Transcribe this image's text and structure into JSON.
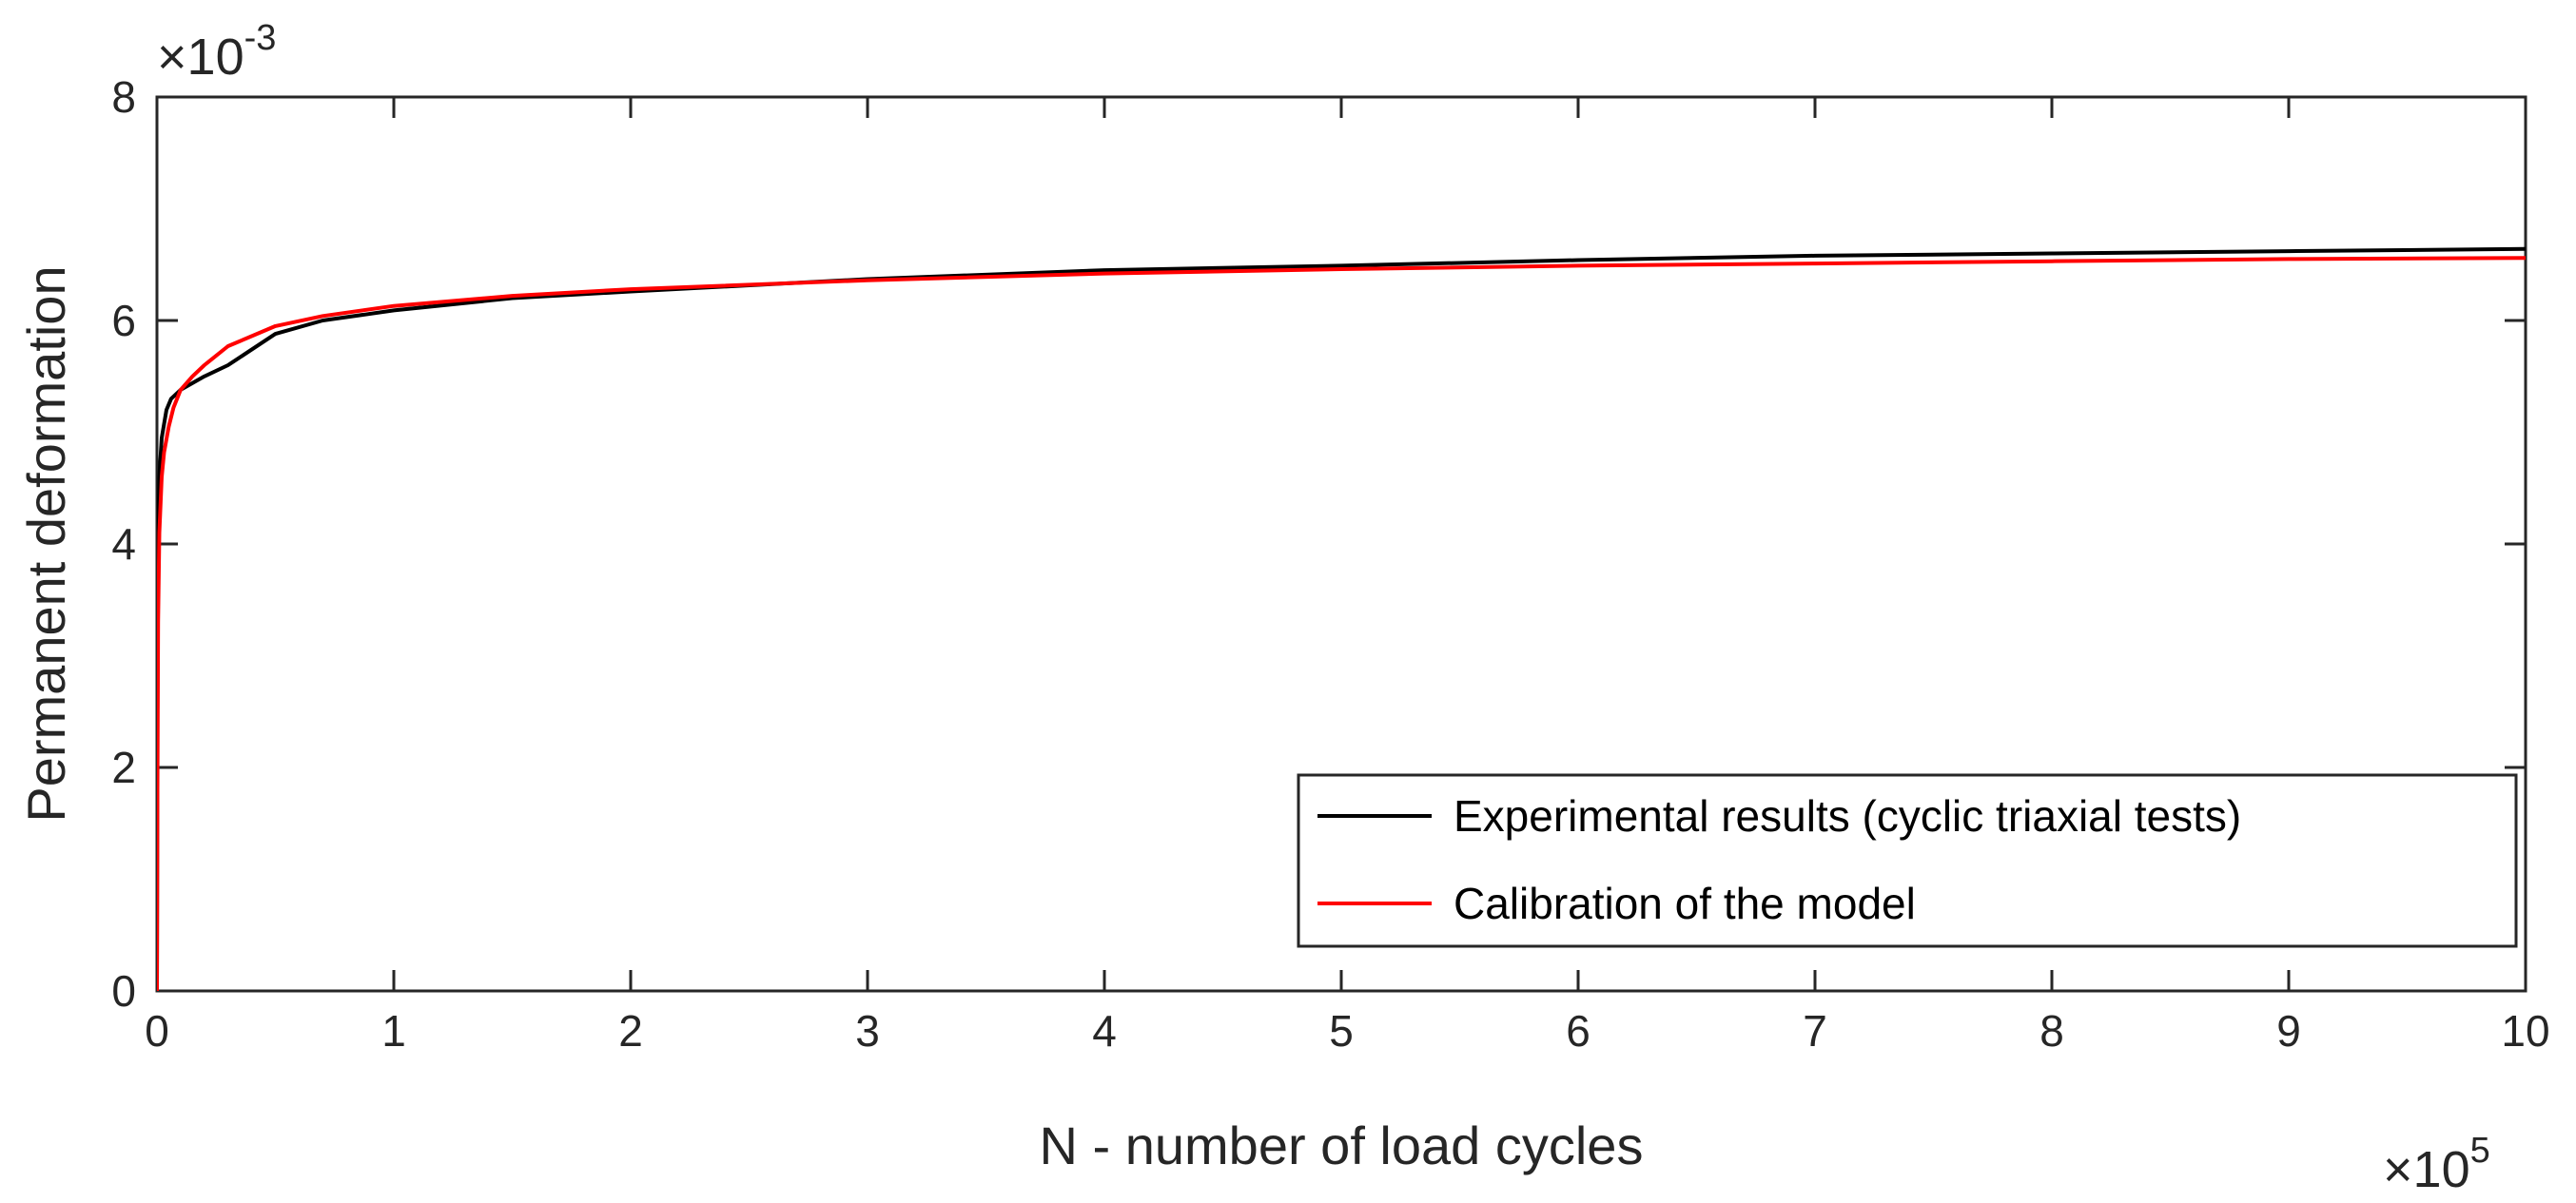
{
  "chart_data": {
    "type": "line",
    "title": "",
    "xlabel": "N - number of load cycles",
    "ylabel": "Permanent deformation",
    "xlim": [
      0,
      10
    ],
    "ylim": [
      0,
      8
    ],
    "x_multiplier": {
      "base": "×10",
      "exponent": "5"
    },
    "y_multiplier": {
      "base": "×10",
      "exponent": "-3"
    },
    "x_ticks": [
      "0",
      "1",
      "2",
      "3",
      "4",
      "5",
      "6",
      "7",
      "8",
      "9",
      "10"
    ],
    "y_ticks": [
      "0",
      "2",
      "4",
      "6",
      "8"
    ],
    "grid": false,
    "legend_position": "bottom-right",
    "series": [
      {
        "name": "Experimental results (cyclic triaxial tests)",
        "color": "#000000",
        "x": [
          0,
          0.002,
          0.005,
          0.01,
          0.02,
          0.04,
          0.06,
          0.1,
          0.2,
          0.3,
          0.5,
          0.7,
          1,
          1.5,
          2,
          3,
          4,
          5,
          6,
          7,
          8,
          9,
          10
        ],
        "y": [
          0,
          2.5,
          4.0,
          4.6,
          4.95,
          5.2,
          5.3,
          5.38,
          5.5,
          5.6,
          5.88,
          6.0,
          6.09,
          6.2,
          6.26,
          6.37,
          6.45,
          6.49,
          6.54,
          6.58,
          6.6,
          6.62,
          6.64
        ]
      },
      {
        "name": "Calibration of the model",
        "color": "#ff0000",
        "x": [
          0,
          0.002,
          0.005,
          0.01,
          0.02,
          0.03,
          0.05,
          0.07,
          0.1,
          0.15,
          0.2,
          0.3,
          0.5,
          0.7,
          1,
          1.5,
          2,
          3,
          4,
          5,
          6,
          7,
          8,
          9,
          10
        ],
        "y": [
          0,
          1.8,
          3.3,
          4.1,
          4.6,
          4.82,
          5.05,
          5.22,
          5.38,
          5.5,
          5.6,
          5.77,
          5.95,
          6.04,
          6.13,
          6.22,
          6.28,
          6.36,
          6.42,
          6.46,
          6.49,
          6.51,
          6.53,
          6.55,
          6.56
        ]
      }
    ]
  }
}
